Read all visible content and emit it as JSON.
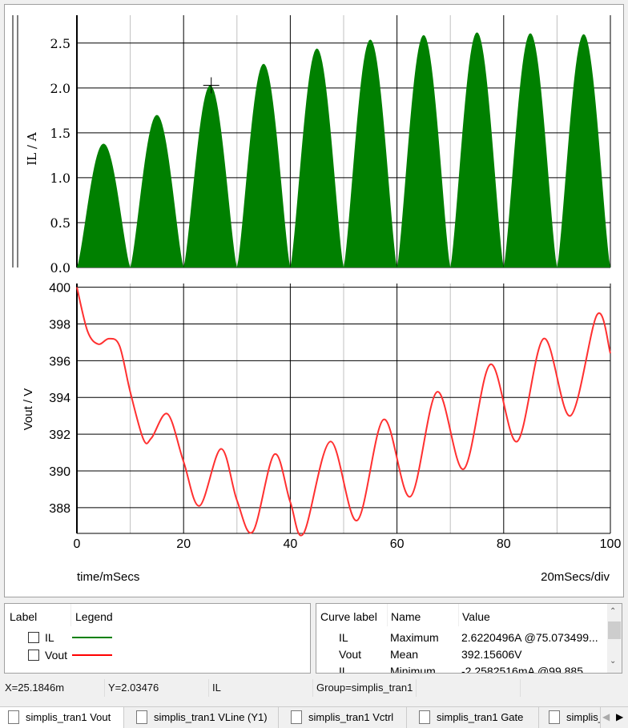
{
  "plot": {
    "top": {
      "ylabel": "IL / A",
      "yticks": [
        "0.0",
        "0.5",
        "1.0",
        "1.5",
        "2.0",
        "2.5"
      ],
      "ylim": [
        0,
        2.65
      ]
    },
    "bottom": {
      "ylabel": "Vout / V",
      "yticks": [
        "388",
        "390",
        "392",
        "394",
        "396",
        "398",
        "400"
      ],
      "ylim": [
        386.6,
        400.2
      ]
    },
    "xticks": [
      "0",
      "20",
      "40",
      "60",
      "80",
      "100"
    ],
    "xlabel": "time/mSecs",
    "xdiv": "20mSecs/div",
    "cursor": {
      "x": 25.18,
      "y": 2.03
    }
  },
  "chart_data": [
    {
      "type": "area",
      "title": "",
      "ylabel": "IL / A",
      "xlabel": "time/mSecs",
      "xlim": [
        0,
        100
      ],
      "ylim": [
        0,
        2.65
      ],
      "color": "#008000",
      "hump_period": 10,
      "peaks_x": [
        5,
        15,
        25,
        35,
        45,
        55,
        65,
        75,
        85,
        95
      ],
      "peaks_y": [
        1.38,
        1.7,
        2.03,
        2.27,
        2.44,
        2.54,
        2.59,
        2.62,
        2.61,
        2.6
      ]
    },
    {
      "type": "line",
      "title": "",
      "ylabel": "Vout / V",
      "xlabel": "time/mSecs",
      "xlim": [
        0,
        100
      ],
      "ylim": [
        386.6,
        400.2
      ],
      "color": "#ff3030",
      "x": [
        0,
        2,
        4,
        6,
        8,
        10,
        12.5,
        14,
        17,
        20,
        23,
        27,
        30,
        33,
        37,
        40,
        42.5,
        47.5,
        52.5,
        57.5,
        62.5,
        67.5,
        72.5,
        77.5,
        82.5,
        87.5,
        92.5,
        97.5,
        100
      ],
      "y": [
        400,
        397.6,
        396.9,
        397.2,
        396.8,
        394.3,
        391.7,
        391.8,
        393.1,
        390.5,
        388.1,
        391.2,
        388.4,
        386.7,
        390.9,
        388.3,
        386.6,
        391.6,
        387.3,
        392.8,
        388.6,
        394.3,
        390.1,
        395.8,
        391.6,
        397.2,
        393.0,
        398.5,
        396.4
      ]
    }
  ],
  "legend": {
    "headers": [
      "Label",
      "Legend"
    ],
    "items": [
      {
        "label": "IL",
        "color": "#008000"
      },
      {
        "label": "Vout",
        "color": "#ff0000"
      }
    ]
  },
  "measure": {
    "headers": [
      "Curve label",
      "Name",
      "Value"
    ],
    "rows": [
      [
        "IL",
        "Maximum",
        "2.6220496A @75.073499..."
      ],
      [
        "Vout",
        "Mean",
        "392.15606V"
      ],
      [
        "IL",
        "Minimum",
        "-2.2582516mA @99.885"
      ]
    ]
  },
  "status": {
    "x": "X=25.1846m",
    "y": "Y=2.03476",
    "curve": "IL",
    "group": "Group=simplis_tran1"
  },
  "tabs": [
    "simplis_tran1 Vout",
    "simplis_tran1 VLine (Y1)",
    "simplis_tran1 Vctrl",
    "simplis_tran1 Gate",
    "simplis_"
  ]
}
